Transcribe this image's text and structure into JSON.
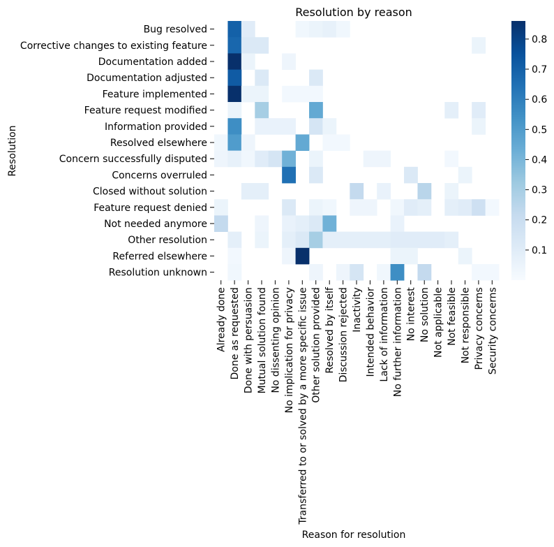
{
  "chart_data": {
    "type": "heatmap",
    "title": "Resolution by reason",
    "xlabel": "Reason for resolution",
    "ylabel": "Resolution",
    "rows": [
      "Bug resolved",
      "Corrective changes to existing feature",
      "Documentation added",
      "Documentation adjusted",
      "Feature implemented",
      "Feature request modified",
      "Information provided",
      "Resolved elsewhere",
      "Concern successfully disputed",
      "Concerns overruled",
      "Closed without solution",
      "Feature request denied",
      "Not needed anymore",
      "Other resolution",
      "Referred elsewhere",
      "Resolution unknown"
    ],
    "columns": [
      "Already done",
      "Done as requested",
      "Done with persuasion",
      "Mutual solution found",
      "No dissenting opinion",
      "No implication for privacy",
      "Transferred to or solved by a more specific issue",
      "Other solution provided",
      "Resolved by itself",
      "Discussion rejected",
      "Inactivity",
      "Intended behavior",
      "Lack of information",
      "No further information",
      "No interest",
      "No solution",
      "Not applicable",
      "Not feasible",
      "Not responsible",
      "Privacy concerns",
      "Security concerns"
    ],
    "values": [
      [
        0,
        0.7,
        0.1,
        0,
        0,
        0,
        0.03,
        0.05,
        0.07,
        0.03,
        0,
        0,
        0,
        0,
        0,
        0,
        0,
        0,
        0,
        0,
        0
      ],
      [
        0,
        0.68,
        0.12,
        0.12,
        0,
        0,
        0,
        0,
        0,
        0,
        0,
        0,
        0,
        0,
        0,
        0,
        0,
        0,
        0,
        0.05,
        0
      ],
      [
        0,
        0.86,
        0.05,
        0,
        0,
        0.04,
        0,
        0,
        0,
        0,
        0,
        0,
        0,
        0,
        0,
        0,
        0,
        0,
        0,
        0,
        0
      ],
      [
        0,
        0.72,
        0,
        0.12,
        0,
        0,
        0,
        0.12,
        0,
        0,
        0,
        0,
        0,
        0,
        0,
        0,
        0,
        0,
        0,
        0,
        0
      ],
      [
        0,
        0.86,
        0.05,
        0.05,
        0,
        0.02,
        0.02,
        0.02,
        0,
        0,
        0,
        0,
        0,
        0,
        0,
        0,
        0,
        0,
        0,
        0,
        0
      ],
      [
        0,
        0.05,
        0,
        0.3,
        0,
        0,
        0,
        0.45,
        0,
        0,
        0,
        0,
        0,
        0,
        0,
        0,
        0,
        0.08,
        0,
        0.1,
        0
      ],
      [
        0,
        0.55,
        0,
        0.06,
        0.06,
        0.06,
        0,
        0.15,
        0.05,
        0,
        0,
        0,
        0,
        0,
        0,
        0,
        0,
        0,
        0,
        0.05,
        0
      ],
      [
        0.03,
        0.5,
        0.04,
        0,
        0,
        0,
        0.45,
        0,
        0.02,
        0.02,
        0,
        0,
        0,
        0,
        0,
        0,
        0,
        0,
        0,
        0,
        0
      ],
      [
        0.04,
        0.07,
        0.03,
        0.1,
        0.15,
        0.42,
        0,
        0.05,
        0,
        0,
        0,
        0.04,
        0.04,
        0,
        0,
        0,
        0,
        0.02,
        0,
        0,
        0
      ],
      [
        0,
        0,
        0,
        0,
        0,
        0.65,
        0,
        0.12,
        0,
        0,
        0,
        0,
        0,
        0,
        0.12,
        0,
        0,
        0,
        0.05,
        0,
        0
      ],
      [
        0,
        0,
        0.08,
        0.08,
        0,
        0,
        0,
        0,
        0,
        0,
        0.22,
        0,
        0.06,
        0,
        0,
        0.25,
        0,
        0.05,
        0,
        0,
        0
      ],
      [
        0.05,
        0,
        0,
        0,
        0,
        0.12,
        0,
        0.05,
        0.03,
        0,
        0.04,
        0.04,
        0,
        0.03,
        0.1,
        0.08,
        0,
        0.08,
        0.1,
        0.18,
        0.02
      ],
      [
        0.22,
        0,
        0,
        0.04,
        0,
        0.06,
        0.08,
        0.12,
        0.42,
        0,
        0,
        0,
        0,
        0.06,
        0,
        0,
        0,
        0,
        0,
        0,
        0
      ],
      [
        0,
        0.08,
        0,
        0.05,
        0,
        0.08,
        0.12,
        0.3,
        0.08,
        0.08,
        0.08,
        0.08,
        0.08,
        0.1,
        0.1,
        0.1,
        0.1,
        0.08,
        0,
        0,
        0
      ],
      [
        0,
        0.02,
        0,
        0,
        0,
        0.04,
        0.86,
        0,
        0,
        0,
        0,
        0,
        0,
        0.05,
        0.05,
        0,
        0,
        0,
        0.05,
        0,
        0
      ],
      [
        0,
        0.03,
        0,
        0,
        0,
        0,
        0,
        0.04,
        0,
        0.04,
        0.15,
        0,
        0.03,
        0.55,
        0,
        0.22,
        0,
        0,
        0,
        0.02,
        0.02
      ]
    ],
    "colorbar": {
      "min": 0,
      "max": 0.86,
      "ticks": [
        0.1,
        0.2,
        0.3,
        0.4,
        0.5,
        0.6,
        0.7,
        0.8
      ],
      "tick_labels": [
        "0.1",
        "0.2",
        "0.3",
        "0.4",
        "0.5",
        "0.6",
        "0.7",
        "0.8"
      ]
    },
    "colormap": [
      "#f7fbff",
      "#deebf7",
      "#c6dbef",
      "#9ecae1",
      "#6baed6",
      "#4292c6",
      "#2171b5",
      "#08519c",
      "#08306b"
    ]
  }
}
